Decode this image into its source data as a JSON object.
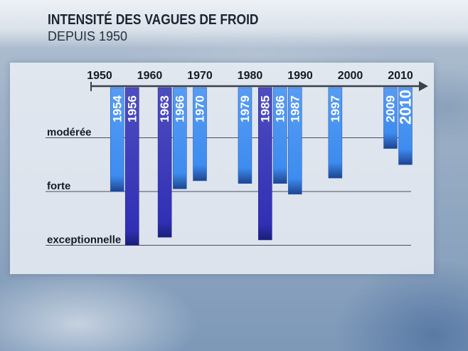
{
  "chart_data": {
    "type": "bar",
    "title": "INTENSITÉ DES VAGUES DE FROID",
    "subtitle": "DEPUIS 1950",
    "orientation": "down",
    "grid": true,
    "x_ticks": [
      "1950",
      "1960",
      "1970",
      "1980",
      "1990",
      "2000",
      "2010"
    ],
    "y_ticks": [
      {
        "value": 1,
        "label": "modérée"
      },
      {
        "value": 2,
        "label": "forte"
      },
      {
        "value": 3,
        "label": "exceptionnelle"
      }
    ],
    "ylim": [
      0,
      3
    ],
    "points": [
      {
        "year": "1954",
        "value": 2.0,
        "color": "#3d8cf0"
      },
      {
        "year": "1956",
        "value": 3.0,
        "color": "#3130b5"
      },
      {
        "year": "1963",
        "value": 2.85,
        "color": "#3130b5"
      },
      {
        "year": "1966",
        "value": 1.95,
        "color": "#3d8cf0"
      },
      {
        "year": "1970",
        "value": 1.8,
        "color": "#3d8cf0"
      },
      {
        "year": "1979",
        "value": 1.85,
        "color": "#3d8cf0"
      },
      {
        "year": "1985",
        "value": 2.9,
        "color": "#3130b5"
      },
      {
        "year": "1986",
        "value": 1.85,
        "color": "#3d8cf0"
      },
      {
        "year": "1987",
        "value": 2.05,
        "color": "#3d8cf0"
      },
      {
        "year": "1997",
        "value": 1.75,
        "color": "#3d8cf0"
      },
      {
        "year": "2009",
        "value": 1.2,
        "color": "#3d8cf0"
      },
      {
        "year": "2010",
        "value": 1.5,
        "color": "#3d8cf0"
      }
    ]
  }
}
